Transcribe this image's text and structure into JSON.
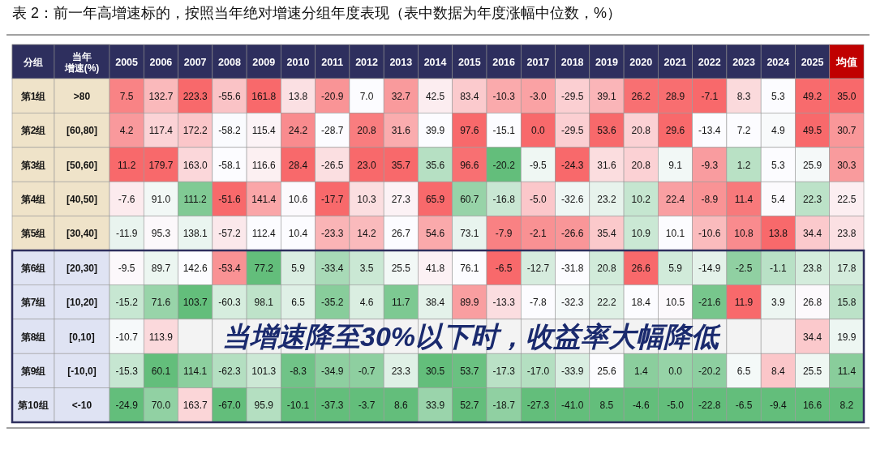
{
  "chart_data": {
    "type": "heatmap",
    "title": "表 2：前一年高增速标的，按照当年绝对增速分组年度表现（表中数据为年度涨幅中位数，%）",
    "categories": [
      "2005",
      "2006",
      "2007",
      "2008",
      "2009",
      "2010",
      "2011",
      "2012",
      "2013",
      "2014",
      "2015",
      "2016",
      "2017",
      "2018",
      "2019",
      "2020",
      "2021",
      "2022",
      "2023",
      "2024",
      "2025",
      "均值"
    ],
    "y_categories": [
      "第1组",
      "第2组",
      "第3组",
      "第4组",
      "第5组",
      "第6组",
      "第7组",
      "第8组",
      "第9组",
      "第10组"
    ],
    "y2_categories": [
      ">80",
      "[60,80]",
      "[50,60]",
      "[40,50]",
      "[30,40]",
      "[20,30]",
      "[10,20]",
      "[0,10]",
      "[-10,0]",
      "<-10"
    ],
    "cells": [
      [
        7.5,
        132.7,
        223.3,
        -55.6,
        161.8,
        13.8,
        -20.9,
        7.0,
        32.7,
        42.5,
        83.4,
        -10.3,
        -3.0,
        -29.5,
        39.1,
        26.2,
        28.9,
        -7.1,
        8.3,
        5.3,
        49.2,
        35.0
      ],
      [
        4.2,
        117.4,
        172.2,
        -58.2,
        115.4,
        24.2,
        -28.7,
        20.8,
        31.6,
        39.9,
        97.6,
        -15.1,
        0.0,
        -29.5,
        53.6,
        20.8,
        29.6,
        -13.4,
        7.2,
        4.9,
        49.5,
        30.7
      ],
      [
        11.2,
        179.7,
        163.0,
        -58.1,
        116.6,
        28.4,
        -26.5,
        23.0,
        35.7,
        35.6,
        96.6,
        -20.2,
        -9.5,
        -24.3,
        31.6,
        20.8,
        9.1,
        -9.3,
        1.2,
        5.3,
        25.9,
        30.3
      ],
      [
        -7.6,
        91.0,
        111.2,
        -51.6,
        141.4,
        10.6,
        -17.7,
        10.3,
        27.3,
        65.9,
        60.7,
        -16.8,
        -5.0,
        -32.6,
        23.2,
        10.2,
        22.4,
        -8.9,
        11.4,
        5.4,
        22.3,
        22.5
      ],
      [
        -11.9,
        95.3,
        138.1,
        -57.2,
        112.4,
        10.4,
        -23.3,
        14.2,
        26.7,
        54.6,
        73.1,
        -7.9,
        -2.1,
        -26.6,
        35.4,
        10.9,
        10.1,
        -10.6,
        10.8,
        13.8,
        34.4,
        23.8
      ],
      [
        -9.5,
        89.7,
        142.6,
        -53.4,
        77.2,
        5.9,
        -33.4,
        3.5,
        25.5,
        41.8,
        76.1,
        -6.5,
        -12.7,
        -31.8,
        20.8,
        26.6,
        5.9,
        -14.9,
        -2.5,
        -1.1,
        23.8,
        17.8
      ],
      [
        -15.2,
        71.6,
        103.7,
        -60.3,
        98.1,
        6.5,
        -35.2,
        4.6,
        11.7,
        38.4,
        89.9,
        -13.3,
        -7.8,
        -32.3,
        22.2,
        18.4,
        10.5,
        -21.6,
        11.9,
        3.9,
        26.8,
        15.8
      ],
      [
        -10.7,
        113.9,
        null,
        null,
        null,
        null,
        null,
        null,
        null,
        null,
        null,
        null,
        null,
        null,
        null,
        null,
        null,
        null,
        null,
        null,
        34.4,
        19.9
      ],
      [
        -15.3,
        60.1,
        114.1,
        -62.3,
        101.3,
        -8.3,
        -34.9,
        -0.7,
        23.3,
        30.5,
        53.7,
        -17.3,
        -17.0,
        -33.9,
        25.6,
        1.4,
        0.0,
        -20.2,
        6.5,
        8.4,
        25.5,
        11.4
      ],
      [
        -24.9,
        70.0,
        163.7,
        -67.0,
        95.9,
        -10.1,
        -37.3,
        -3.7,
        8.6,
        33.9,
        52.7,
        -18.7,
        -27.3,
        -41.0,
        8.5,
        -4.6,
        -5.0,
        -22.8,
        -6.5,
        -9.4,
        16.6,
        8.2
      ]
    ],
    "cell_labels": [
      [
        "7.5",
        "132.7",
        "223.3",
        "-55.6",
        "161.8",
        "13.8",
        "-20.9",
        "7.0",
        "32.7",
        "42.5",
        "83.4",
        "-10.3",
        "-3.0",
        "-29.5",
        "39.1",
        "26.2",
        "28.9",
        "-7.1",
        "8.3",
        "5.3",
        "49.2",
        "35.0"
      ],
      [
        "4.2",
        "117.4",
        "172.2",
        "-58.2",
        "115.4",
        "24.2",
        "-28.7",
        "20.8",
        "31.6",
        "39.9",
        "97.6",
        "-15.1",
        "0.0",
        "-29.5",
        "53.6",
        "20.8",
        "29.6",
        "-13.4",
        "7.2",
        "4.9",
        "49.5",
        "30.7"
      ],
      [
        "11.2",
        "179.7",
        "163.0",
        "-58.1",
        "116.6",
        "28.4",
        "-26.5",
        "23.0",
        "35.7",
        "35.6",
        "96.6",
        "-20.2",
        "-9.5",
        "-24.3",
        "31.6",
        "20.8",
        "9.1",
        "-9.3",
        "1.2",
        "5.3",
        "25.9",
        "30.3"
      ],
      [
        "-7.6",
        "91.0",
        "111.2",
        "-51.6",
        "141.4",
        "10.6",
        "-17.7",
        "10.3",
        "27.3",
        "65.9",
        "60.7",
        "-16.8",
        "-5.0",
        "-32.6",
        "23.2",
        "10.2",
        "22.4",
        "-8.9",
        "11.4",
        "5.4",
        "22.3",
        "22.5"
      ],
      [
        "-11.9",
        "95.3",
        "138.1",
        "-57.2",
        "112.4",
        "10.4",
        "-23.3",
        "14.2",
        "26.7",
        "54.6",
        "73.1",
        "-7.9",
        "-2.1",
        "-26.6",
        "35.4",
        "10.9",
        "10.1",
        "-10.6",
        "10.8",
        "13.8",
        "34.4",
        "23.8"
      ],
      [
        "-9.5",
        "89.7",
        "142.6",
        "-53.4",
        "77.2",
        "5.9",
        "-33.4",
        "3.5",
        "25.5",
        "41.8",
        "76.1",
        "-6.5",
        "-12.7",
        "-31.8",
        "20.8",
        "26.6",
        "5.9",
        "-14.9",
        "-2.5",
        "-1.1",
        "23.8",
        "17.8"
      ],
      [
        "-15.2",
        "71.6",
        "103.7",
        "-60.3",
        "98.1",
        "6.5",
        "-35.2",
        "4.6",
        "11.7",
        "38.4",
        "89.9",
        "-13.3",
        "-7.8",
        "-32.3",
        "22.2",
        "18.4",
        "10.5",
        "-21.6",
        "11.9",
        "3.9",
        "26.8",
        "15.8"
      ],
      [
        "-10.7",
        "113.9",
        null,
        null,
        null,
        null,
        null,
        null,
        null,
        null,
        null,
        null,
        null,
        null,
        null,
        null,
        null,
        null,
        null,
        null,
        "34.4",
        "19.9"
      ],
      [
        "-15.3",
        "60.1",
        "114.1",
        "-62.3",
        "101.3",
        "-8.3",
        "-34.9",
        "-0.7",
        "23.3",
        "30.5",
        "53.7",
        "-17.3",
        "-17.0",
        "-33.9",
        "25.6",
        "1.4",
        "0.0",
        "-20.2",
        "6.5",
        "8.4",
        "25.5",
        "11.4"
      ],
      [
        "-24.9",
        "70.0",
        "163.7",
        "-67.0",
        "95.9",
        "-10.1",
        "-37.3",
        "-3.7",
        "8.6",
        "33.9",
        "52.7",
        "-18.7",
        "-27.3",
        "-41.0",
        "8.5",
        "-4.6",
        "-5.0",
        "-22.8",
        "-6.5",
        "-9.4",
        "16.6",
        "8.2"
      ]
    ],
    "annotations": [
      "分组",
      "当年",
      "增速(%)",
      "当增速降至30%以下时，收益率大幅降低"
    ]
  }
}
